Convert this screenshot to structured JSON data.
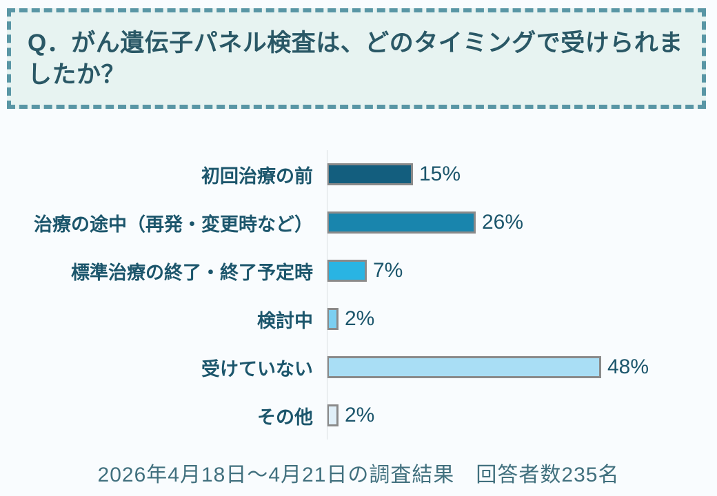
{
  "page": {
    "background": "#f9fcfe"
  },
  "question_box": {
    "title": "Q．がん遺伝子パネル検査は、どのタイミングで受けられましたか？",
    "background": "#e7f3f1",
    "border_color": "#5996a5",
    "text_color": "#2a5866"
  },
  "chart_data": {
    "type": "bar",
    "orientation": "horizontal",
    "title": "Q．がん遺伝子パネル検査は、どのタイミングで受けられましたか？",
    "categories": [
      "初回治療の前",
      "治療の途中（再発・変更時など）",
      "標準治療の終了・終了予定時",
      "検討中",
      "受けていない",
      "その他"
    ],
    "values": [
      15,
      26,
      7,
      2,
      48,
      2
    ],
    "value_labels": [
      "15%",
      "26%",
      "7%",
      "2%",
      "48%",
      "2%"
    ],
    "value_suffix": "%",
    "xlim": [
      0,
      50
    ],
    "grid": false,
    "legend": false,
    "bar_colors": [
      "#135e7e",
      "#1985ad",
      "#29b4e3",
      "#7bcff1",
      "#a9def5",
      "#e0eff8"
    ],
    "bar_border_color": "#8a8a8a",
    "axis_line_color": "#d9dee1",
    "label_color": "#1c566c",
    "value_color": "#1c566c"
  },
  "footer": {
    "caption": "2026年4月18日～4月21日の調査結果　回答者数235名",
    "text_color": "#41707e"
  }
}
